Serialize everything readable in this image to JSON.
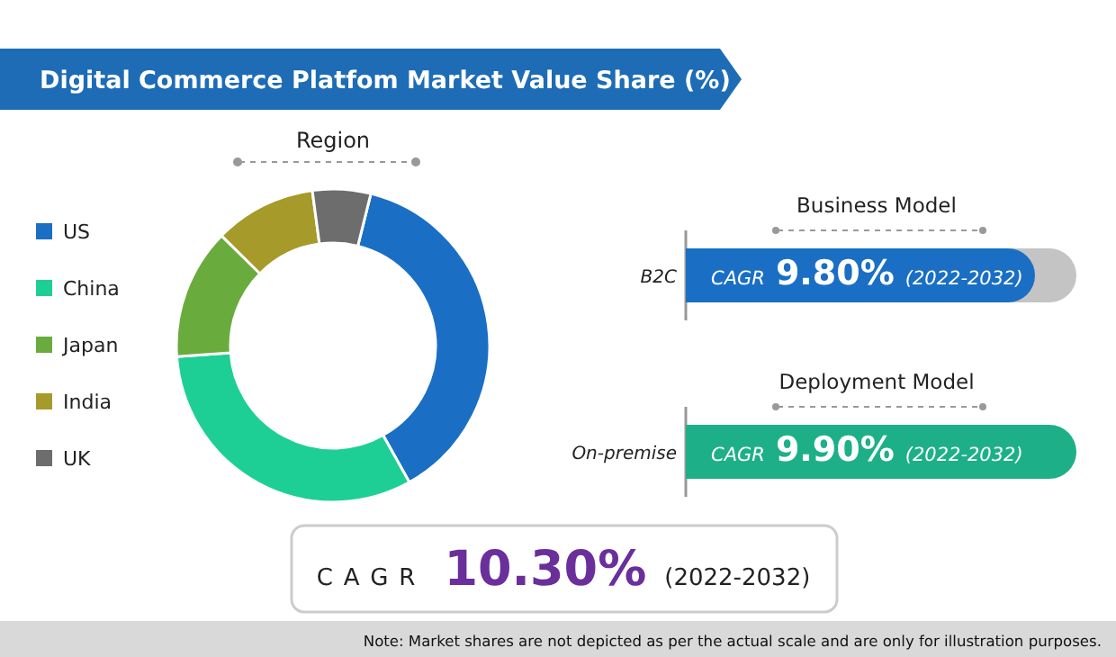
{
  "chart_data": [
    {
      "type": "donut",
      "title": "Digital Commerce Platfom Market Value Share (%)",
      "subtitle": "Region",
      "categories": [
        "US",
        "China",
        "Japan",
        "India",
        "UK"
      ],
      "values": [
        38,
        32,
        13.5,
        10.5,
        6
      ],
      "colors": [
        "#1a6fc4",
        "#1ecf95",
        "#6aab3e",
        "#a69a2a",
        "#6d6d6d"
      ],
      "legend": "left",
      "annotations": [
        "Note: Market shares are not depicted as per the actual scale and are only for illustration purposes."
      ]
    },
    {
      "type": "other",
      "title": "Business Model",
      "categories": [
        "B2C"
      ],
      "color": "#1a6fc4",
      "annotations": [
        "CAGR",
        "9.80%",
        "(2022-2032)"
      ]
    },
    {
      "type": "other",
      "title": "Deployment Model",
      "categories": [
        "On-premise"
      ],
      "color": "#1db088",
      "annotations": [
        "CAGR",
        "9.90%",
        "(2022-2032)"
      ]
    },
    {
      "type": "other",
      "color": "#6a2f9b",
      "annotations": [
        "CAGR",
        "10.30%",
        "(2022-2032)"
      ]
    }
  ]
}
